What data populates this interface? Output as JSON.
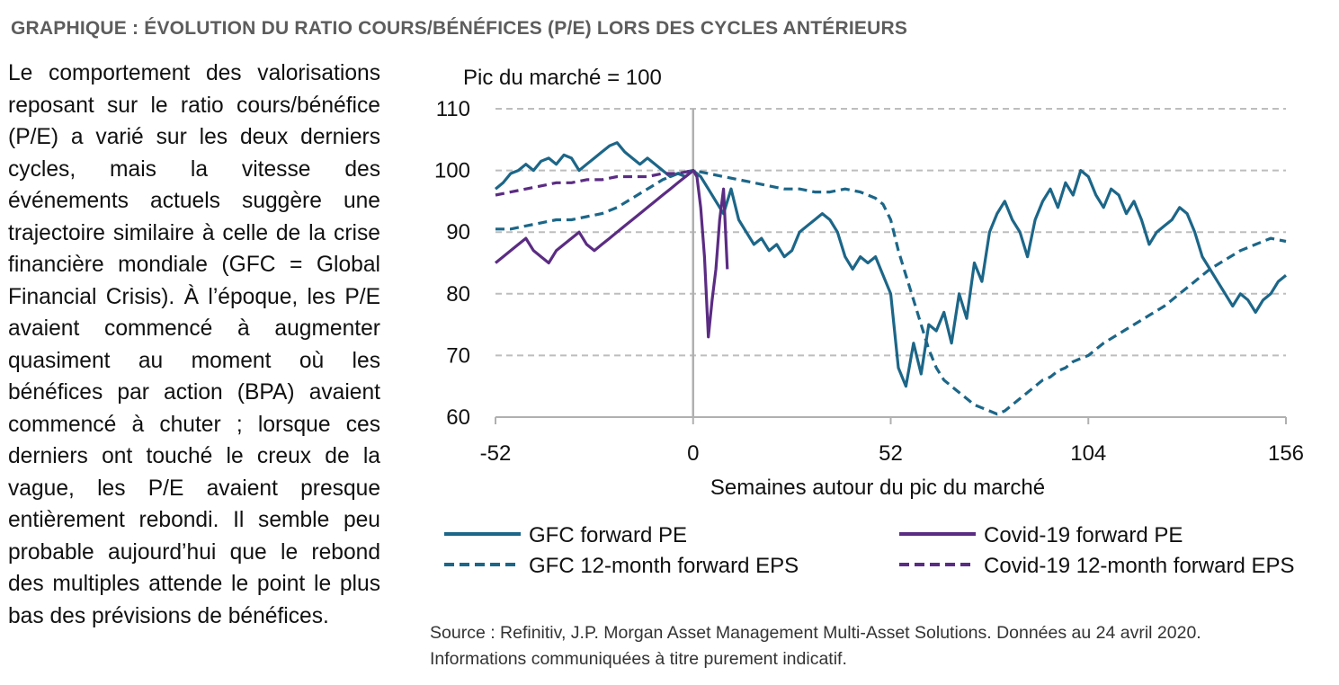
{
  "heading": "GRAPHIQUE : ÉVOLUTION DU RATIO COURS/BÉNÉFICES (P/E) LORS DES CYCLES ANTÉRIEURS",
  "body_text": "Le comportement des valorisations reposant sur le ratio cours/bénéfice (P/E) a varié sur les deux derniers cycles, mais la vitesse des événements actuels suggère une trajectoire similaire à celle de la crise financière mondiale (GFC = Global Financial Crisis). À l’époque, les P/E avaient commencé à augmenter quasiment au moment où les bénéfices par action (BPA) avaient commencé à chuter ; lorsque ces derniers ont touché le creux de la vague, les P/E avaient presque entièrement rebondi. Il semble peu probable aujourd’hui que le rebond des multiples attende le point le plus bas des prévisions de bénéfices.",
  "source": {
    "line1": "Source : Refinitiv, J.P. Morgan Asset Management Multi-Asset Solutions. Données au 24 avril 2020.",
    "line2": "Informations communiquées à titre purement indicatif."
  },
  "colors": {
    "gfc": "#1c6688",
    "covid": "#5b2c83",
    "grid": "#bdbdbd",
    "axis": "#b0b0b0"
  },
  "chart_data": {
    "type": "line",
    "title": "Pic du marché = 100",
    "xlabel": "Semaines autour du pic du marché",
    "ylabel": "",
    "xlim": [
      -52,
      156
    ],
    "ylim": [
      60,
      110
    ],
    "xticks": [
      -52,
      0,
      52,
      104,
      156
    ],
    "yticks": [
      60,
      70,
      80,
      90,
      100,
      110
    ],
    "grid": "horizontal dashed",
    "legend_position": "bottom",
    "series": [
      {
        "name": "GFC forward PE",
        "style": "solid",
        "color": "#1c6688",
        "points": [
          [
            -52,
            97
          ],
          [
            -50,
            98
          ],
          [
            -48,
            99.5
          ],
          [
            -46,
            100
          ],
          [
            -44,
            101
          ],
          [
            -42,
            100
          ],
          [
            -40,
            101.5
          ],
          [
            -38,
            102
          ],
          [
            -36,
            101
          ],
          [
            -34,
            102.5
          ],
          [
            -32,
            102
          ],
          [
            -30,
            100
          ],
          [
            -28,
            101
          ],
          [
            -26,
            102
          ],
          [
            -24,
            103
          ],
          [
            -22,
            104
          ],
          [
            -20,
            104.5
          ],
          [
            -18,
            103
          ],
          [
            -16,
            102
          ],
          [
            -14,
            101
          ],
          [
            -12,
            102
          ],
          [
            -10,
            101
          ],
          [
            -8,
            100
          ],
          [
            -6,
            99
          ],
          [
            -4,
            99.5
          ],
          [
            -2,
            99
          ],
          [
            0,
            100
          ],
          [
            2,
            99
          ],
          [
            4,
            97
          ],
          [
            6,
            95
          ],
          [
            8,
            93
          ],
          [
            10,
            97
          ],
          [
            12,
            92
          ],
          [
            14,
            90
          ],
          [
            16,
            88
          ],
          [
            18,
            89
          ],
          [
            20,
            87
          ],
          [
            22,
            88
          ],
          [
            24,
            86
          ],
          [
            26,
            87
          ],
          [
            28,
            90
          ],
          [
            30,
            91
          ],
          [
            32,
            92
          ],
          [
            34,
            93
          ],
          [
            36,
            92
          ],
          [
            38,
            90
          ],
          [
            40,
            86
          ],
          [
            42,
            84
          ],
          [
            44,
            86
          ],
          [
            46,
            85
          ],
          [
            48,
            86
          ],
          [
            50,
            83
          ],
          [
            52,
            80
          ],
          [
            54,
            68
          ],
          [
            56,
            65
          ],
          [
            58,
            72
          ],
          [
            60,
            67
          ],
          [
            62,
            75
          ],
          [
            64,
            74
          ],
          [
            66,
            77
          ],
          [
            68,
            72
          ],
          [
            70,
            80
          ],
          [
            72,
            76
          ],
          [
            74,
            85
          ],
          [
            76,
            82
          ],
          [
            78,
            90
          ],
          [
            80,
            93
          ],
          [
            82,
            95
          ],
          [
            84,
            92
          ],
          [
            86,
            90
          ],
          [
            88,
            86
          ],
          [
            90,
            92
          ],
          [
            92,
            95
          ],
          [
            94,
            97
          ],
          [
            96,
            94
          ],
          [
            98,
            98
          ],
          [
            100,
            96
          ],
          [
            102,
            100
          ],
          [
            104,
            99
          ],
          [
            106,
            96
          ],
          [
            108,
            94
          ],
          [
            110,
            97
          ],
          [
            112,
            96
          ],
          [
            114,
            93
          ],
          [
            116,
            95
          ],
          [
            118,
            92
          ],
          [
            120,
            88
          ],
          [
            122,
            90
          ],
          [
            124,
            91
          ],
          [
            126,
            92
          ],
          [
            128,
            94
          ],
          [
            130,
            93
          ],
          [
            132,
            90
          ],
          [
            134,
            86
          ],
          [
            136,
            84
          ],
          [
            138,
            82
          ],
          [
            140,
            80
          ],
          [
            142,
            78
          ],
          [
            144,
            80
          ],
          [
            146,
            79
          ],
          [
            148,
            77
          ],
          [
            150,
            79
          ],
          [
            152,
            80
          ],
          [
            154,
            82
          ],
          [
            156,
            83
          ]
        ]
      },
      {
        "name": "GFC 12-month forward EPS",
        "style": "dashed",
        "color": "#1c6688",
        "points": [
          [
            -52,
            90.5
          ],
          [
            -48,
            90.5
          ],
          [
            -44,
            91
          ],
          [
            -40,
            91.5
          ],
          [
            -36,
            92
          ],
          [
            -32,
            92
          ],
          [
            -28,
            92.5
          ],
          [
            -24,
            93
          ],
          [
            -20,
            94
          ],
          [
            -16,
            95.5
          ],
          [
            -12,
            97
          ],
          [
            -8,
            98.5
          ],
          [
            -4,
            99.5
          ],
          [
            0,
            100
          ],
          [
            4,
            99.5
          ],
          [
            8,
            99
          ],
          [
            12,
            98.5
          ],
          [
            16,
            98
          ],
          [
            20,
            97.5
          ],
          [
            24,
            97
          ],
          [
            28,
            97
          ],
          [
            32,
            96.5
          ],
          [
            36,
            96.5
          ],
          [
            40,
            97
          ],
          [
            44,
            96.5
          ],
          [
            46,
            96
          ],
          [
            48,
            95.5
          ],
          [
            50,
            94.5
          ],
          [
            52,
            92
          ],
          [
            54,
            87
          ],
          [
            56,
            83
          ],
          [
            58,
            79
          ],
          [
            60,
            75
          ],
          [
            62,
            71
          ],
          [
            64,
            68
          ],
          [
            66,
            66
          ],
          [
            68,
            65
          ],
          [
            70,
            64
          ],
          [
            72,
            63
          ],
          [
            74,
            62
          ],
          [
            76,
            61.5
          ],
          [
            78,
            61
          ],
          [
            80,
            60.5
          ],
          [
            82,
            61
          ],
          [
            84,
            62
          ],
          [
            86,
            63
          ],
          [
            88,
            64
          ],
          [
            90,
            65
          ],
          [
            92,
            66
          ],
          [
            94,
            66.5
          ],
          [
            96,
            67.5
          ],
          [
            98,
            68
          ],
          [
            100,
            69
          ],
          [
            102,
            69.5
          ],
          [
            104,
            70
          ],
          [
            108,
            72
          ],
          [
            112,
            73.5
          ],
          [
            116,
            75
          ],
          [
            120,
            76.5
          ],
          [
            124,
            78
          ],
          [
            128,
            80
          ],
          [
            132,
            82
          ],
          [
            136,
            84
          ],
          [
            140,
            85.5
          ],
          [
            144,
            87
          ],
          [
            148,
            88
          ],
          [
            152,
            89
          ],
          [
            156,
            88.5
          ]
        ]
      },
      {
        "name": "Covid-19 forward PE",
        "style": "solid",
        "color": "#5b2c83",
        "points": [
          [
            -52,
            85
          ],
          [
            -50,
            86
          ],
          [
            -48,
            87
          ],
          [
            -46,
            88
          ],
          [
            -44,
            89
          ],
          [
            -42,
            87
          ],
          [
            -40,
            86
          ],
          [
            -38,
            85
          ],
          [
            -36,
            87
          ],
          [
            -34,
            88
          ],
          [
            -32,
            89
          ],
          [
            -30,
            90
          ],
          [
            -28,
            88
          ],
          [
            -26,
            87
          ],
          [
            -24,
            88
          ],
          [
            -22,
            89
          ],
          [
            -20,
            90
          ],
          [
            -18,
            91
          ],
          [
            -16,
            92
          ],
          [
            -14,
            93
          ],
          [
            -12,
            94
          ],
          [
            -10,
            95
          ],
          [
            -8,
            96
          ],
          [
            -6,
            97
          ],
          [
            -4,
            98
          ],
          [
            -2,
            99
          ],
          [
            0,
            100
          ],
          [
            1,
            99
          ],
          [
            2,
            94
          ],
          [
            3,
            86
          ],
          [
            4,
            73
          ],
          [
            5,
            79
          ],
          [
            6,
            84
          ],
          [
            7,
            92
          ],
          [
            8,
            97
          ],
          [
            9,
            84
          ]
        ]
      },
      {
        "name": "Covid-19 12-month forward EPS",
        "style": "dashed",
        "color": "#5b2c83",
        "points": [
          [
            -52,
            96
          ],
          [
            -48,
            96.5
          ],
          [
            -44,
            97
          ],
          [
            -40,
            97.5
          ],
          [
            -36,
            98
          ],
          [
            -32,
            98
          ],
          [
            -28,
            98.5
          ],
          [
            -24,
            98.5
          ],
          [
            -20,
            99
          ],
          [
            -16,
            99
          ],
          [
            -12,
            99
          ],
          [
            -8,
            99.5
          ],
          [
            -4,
            99.5
          ],
          [
            0,
            100
          ]
        ]
      }
    ]
  }
}
